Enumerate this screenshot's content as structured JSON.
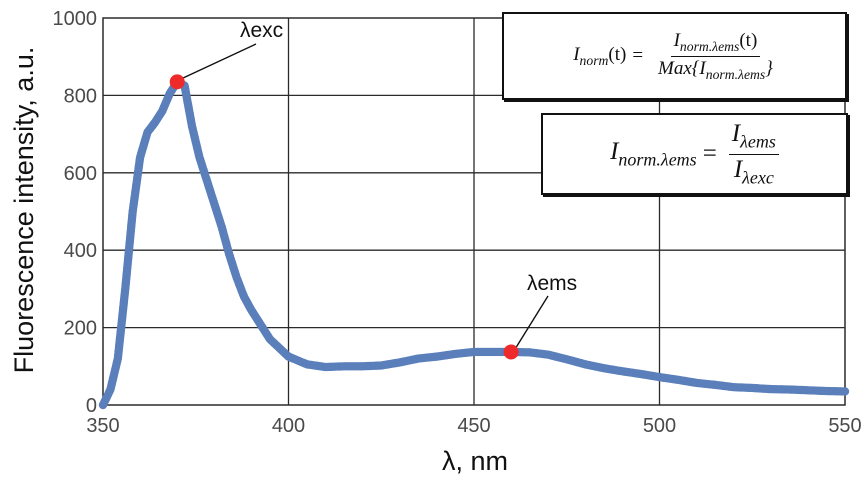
{
  "chart_data": {
    "type": "scatter",
    "xlabel": "λ, nm",
    "ylabel": "Fluorescence intensity, a.u.",
    "xlim": [
      350,
      550
    ],
    "ylim": [
      0,
      1000
    ],
    "x_ticks": [
      350,
      400,
      450,
      500,
      550
    ],
    "y_ticks": [
      0,
      200,
      400,
      600,
      800,
      1000
    ],
    "grid": true,
    "series_color": "#5a7fba",
    "highlight_color": "#ee2a2a",
    "series": [
      {
        "x": [
          350,
          352,
          354,
          356,
          358,
          360,
          362,
          364,
          366,
          368,
          370,
          372,
          374,
          376,
          378,
          380,
          382,
          384,
          386,
          388,
          390,
          395,
          400,
          405,
          410,
          415,
          420,
          425,
          430,
          435,
          440,
          445,
          450,
          455,
          460,
          465,
          470,
          475,
          480,
          485,
          490,
          495,
          500,
          505,
          510,
          515,
          520,
          525,
          530,
          535,
          540,
          545,
          550
        ],
        "y": [
          0,
          40,
          120,
          300,
          500,
          640,
          705,
          730,
          760,
          805,
          835,
          825,
          720,
          640,
          580,
          520,
          460,
          390,
          330,
          280,
          245,
          170,
          125,
          105,
          98,
          100,
          100,
          102,
          110,
          120,
          125,
          132,
          137,
          137,
          137,
          136,
          130,
          118,
          105,
          95,
          87,
          80,
          72,
          65,
          57,
          52,
          46,
          44,
          41,
          40,
          38,
          36,
          35
        ]
      }
    ],
    "annotations": [
      {
        "label": "λexc",
        "x": 370,
        "y": 835
      },
      {
        "label": "λems",
        "x": 460,
        "y": 137
      }
    ]
  },
  "formulas": {
    "f1": {
      "lhs": "I",
      "lhs_sub": "norm",
      "lhs_arg": "(t)",
      "eq": "=",
      "num": "I",
      "num_sub": "norm.λems",
      "num_arg": "(t)",
      "den_prefix": "Max{I",
      "den_sub": "norm.λems",
      "den_suffix": "}"
    },
    "f2": {
      "lhs": "I",
      "lhs_sub": "norm.λems",
      "eq": "=",
      "num": "I",
      "num_sub": "λems",
      "den": "I",
      "den_sub": "λexc"
    }
  }
}
